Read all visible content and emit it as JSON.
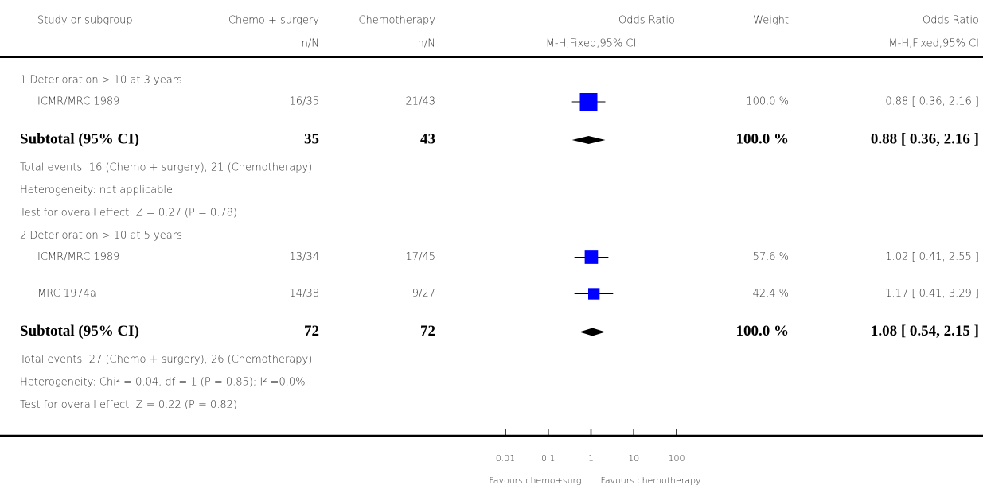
{
  "chart_data": {
    "type": "forest",
    "headers": {
      "study": "Study or subgroup",
      "exp": "Chemo + surgery",
      "ctrl": "Chemotherapy",
      "plot": "Odds Ratio",
      "weight": "Weight",
      "effect": "Odds Ratio"
    },
    "subheaders": {
      "exp": "n/N",
      "ctrl": "n/N",
      "plot": "M-H,Fixed,95% CI",
      "effect": "M-H,Fixed,95% CI"
    },
    "subgroups": [
      {
        "heading": "1 Deterioration > 10  at 3 years",
        "studies": [
          {
            "name": "ICMR/MRC 1989",
            "exp": "16/35",
            "ctrl": "21/43",
            "weight": 100,
            "weight_label": "100.0 %",
            "or": 0.88,
            "ci_low": 0.36,
            "ci_high": 2.16,
            "or_label": "0.88 [ 0.36, 2.16 ]"
          }
        ],
        "subtotal": {
          "name": "Subtotal (95% CI)",
          "exp": 35,
          "ctrl": 43,
          "weight": 100,
          "weight_label": "100.0 %",
          "or": 0.88,
          "ci_low": 0.36,
          "ci_high": 2.16,
          "or_label": "0.88 [ 0.36, 2.16 ]"
        },
        "notes": [
          "Total events: 16 (Chemo + surgery), 21 (Chemotherapy)",
          "Heterogeneity: not applicable",
          "Test for overall effect: Z = 0.27 (P = 0.78)"
        ]
      },
      {
        "heading": "2 Deterioration > 10  at 5 years",
        "studies": [
          {
            "name": "ICMR/MRC 1989",
            "exp": "13/34",
            "ctrl": "17/45",
            "weight": 57.6,
            "weight_label": "57.6 %",
            "or": 1.02,
            "ci_low": 0.41,
            "ci_high": 2.55,
            "or_label": "1.02 [ 0.41, 2.55 ]"
          },
          {
            "name": "MRC 1974a",
            "exp": "14/38",
            "ctrl": "9/27",
            "weight": 42.4,
            "weight_label": "42.4 %",
            "or": 1.17,
            "ci_low": 0.41,
            "ci_high": 3.29,
            "or_label": "1.17 [ 0.41, 3.29 ]"
          }
        ],
        "subtotal": {
          "name": "Subtotal (95% CI)",
          "exp": 72,
          "ctrl": 72,
          "weight": 100,
          "weight_label": "100.0 %",
          "or": 1.08,
          "ci_low": 0.54,
          "ci_high": 2.15,
          "or_label": "1.08 [ 0.54, 2.15 ]"
        },
        "notes": [
          "Total events: 27 (Chemo + surgery), 26 (Chemotherapy)",
          "Heterogeneity: Chi² = 0.04, df = 1 (P = 0.85); I² =0.0%",
          "Test for overall effect: Z = 0.22 (P = 0.82)"
        ]
      }
    ],
    "log_scale": true,
    "xlim": [
      0.01,
      100
    ],
    "xticks": [
      0.01,
      0.1,
      1,
      10,
      100
    ],
    "favours": [
      "Favours chemo+surg",
      "Favours chemotherapy"
    ],
    "marker_color": "#0000ff"
  }
}
